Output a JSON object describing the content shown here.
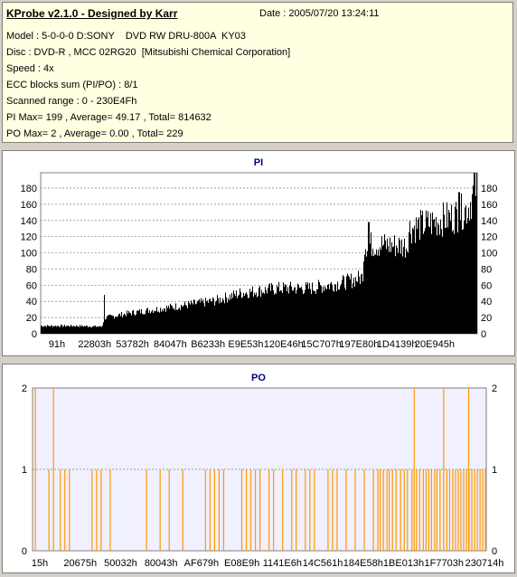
{
  "header": {
    "title": "KProbe v2.1.0 - Designed by Karr",
    "date": "Date : 2005/07/20 13:24:11",
    "lines": [
      "Model : 5-0-0-0 D:SONY    DVD RW DRU-800A  KY03",
      "Disc : DVD-R , MCC 02RG20  [Mitsubishi Chemical Corporation]",
      "Speed : 4x",
      "ECC blocks sum (PI/PO) : 8/1",
      "Scanned range : 0 - 230E4Fh",
      "PI Max= 199 , Average= 49.17 , Total= 814632",
      "PO Max= 2 , Average= 0.00 , Total= 229"
    ]
  },
  "colors": {
    "pi_bar": "#000000",
    "po_bar": "#ff9900",
    "title": "#000080",
    "plot_bg": "#ffffff",
    "po_plot_bg": "#f0f0ff",
    "grid": "#808080"
  },
  "chart_data": [
    {
      "type": "bar",
      "title": "PI",
      "x_tick_labels": [
        "91h",
        "22803h",
        "53782h",
        "84047h",
        "B6233h",
        "E9E53h",
        "120E46h",
        "15C707h",
        "197E80h",
        "1D4139h",
        "20E945h"
      ],
      "ylim": [
        0,
        199
      ],
      "y_ticks": [
        0,
        20,
        40,
        60,
        80,
        100,
        120,
        140,
        160,
        180
      ],
      "grid": true,
      "envelope": [
        {
          "x": 0.0,
          "y": 10
        },
        {
          "x": 0.08,
          "y": 10
        },
        {
          "x": 0.14,
          "y": 9
        },
        {
          "x": 0.145,
          "y": 20
        },
        {
          "x": 0.2,
          "y": 26
        },
        {
          "x": 0.3,
          "y": 34
        },
        {
          "x": 0.4,
          "y": 42
        },
        {
          "x": 0.46,
          "y": 52
        },
        {
          "x": 0.55,
          "y": 58
        },
        {
          "x": 0.62,
          "y": 58
        },
        {
          "x": 0.7,
          "y": 66
        },
        {
          "x": 0.738,
          "y": 72
        },
        {
          "x": 0.742,
          "y": 114
        },
        {
          "x": 0.84,
          "y": 112
        },
        {
          "x": 0.845,
          "y": 134
        },
        {
          "x": 0.9,
          "y": 142
        },
        {
          "x": 0.95,
          "y": 150
        },
        {
          "x": 0.98,
          "y": 160
        },
        {
          "x": 1.0,
          "y": 190
        }
      ],
      "spikes": [
        {
          "x": 0.145,
          "y": 48
        },
        {
          "x": 0.752,
          "y": 138
        },
        {
          "x": 0.96,
          "y": 175
        },
        {
          "x": 0.995,
          "y": 199
        }
      ]
    },
    {
      "type": "bar",
      "title": "PO",
      "x_tick_labels": [
        "15h",
        "20675h",
        "50032h",
        "80043h",
        "AF679h",
        "E08E9h",
        "1141E6h",
        "14C561h",
        "184E58h",
        "1BE013h",
        "1F7703h",
        "230714h"
      ],
      "ylim": [
        0,
        2
      ],
      "y_ticks": [
        0,
        1,
        2
      ],
      "grid": true,
      "po1": [
        0.035,
        0.06,
        0.07,
        0.08,
        0.13,
        0.14,
        0.15,
        0.17,
        0.25,
        0.28,
        0.3,
        0.33,
        0.38,
        0.39,
        0.4,
        0.41,
        0.42,
        0.46,
        0.47,
        0.48,
        0.49,
        0.5,
        0.52,
        0.53,
        0.55,
        0.57,
        0.58,
        0.6,
        0.61,
        0.62,
        0.65,
        0.66,
        0.67,
        0.69,
        0.71,
        0.73,
        0.75,
        0.76,
        0.765,
        0.772,
        0.78,
        0.785,
        0.792,
        0.8,
        0.81,
        0.818,
        0.825,
        0.835,
        0.845,
        0.852,
        0.86,
        0.866,
        0.872,
        0.878,
        0.885,
        0.89,
        0.897,
        0.905,
        0.912,
        0.918,
        0.925,
        0.931,
        0.937,
        0.943,
        0.949,
        0.955,
        0.961,
        0.967,
        0.973,
        0.979,
        0.985,
        0.991,
        0.997
      ],
      "po2": [
        0.005,
        0.045,
        0.84,
        0.905,
        0.96
      ]
    }
  ]
}
